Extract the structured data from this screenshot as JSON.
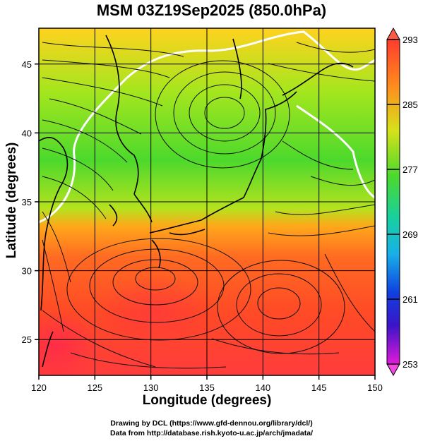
{
  "title": "MSM 03Z19Sep2025 (850.0hPa)",
  "map": {
    "lon_range": [
      120,
      150
    ],
    "lat_range": [
      22.4,
      47.6
    ],
    "x_ticks": [
      {
        "value": 120,
        "label": "120"
      },
      {
        "value": 125,
        "label": "125"
      },
      {
        "value": 130,
        "label": "130"
      },
      {
        "value": 135,
        "label": "135"
      },
      {
        "value": 140,
        "label": "140"
      },
      {
        "value": 145,
        "label": "145"
      },
      {
        "value": 150,
        "label": "150"
      }
    ],
    "y_ticks": [
      {
        "value": 25,
        "label": "25"
      },
      {
        "value": 30,
        "label": "30"
      },
      {
        "value": 35,
        "label": "35"
      },
      {
        "value": 40,
        "label": "40"
      },
      {
        "value": 45,
        "label": "45"
      }
    ],
    "xlabel": "Longitude (degrees)",
    "ylabel": "Latitude  (degrees)",
    "grid": true,
    "field": "temperature (color), streamlines (wind)",
    "contour_value_visible": "285"
  },
  "colorbar": {
    "min": 253,
    "max": 293,
    "labels": [
      "293",
      "285",
      "277",
      "269",
      "261",
      "253"
    ],
    "colors": [
      "#ff3c2c",
      "#ff8a1e",
      "#d6e21a",
      "#2ad12a",
      "#18c9c0",
      "#1060e0",
      "#1010c0",
      "#e01ad8"
    ]
  },
  "credits": {
    "line1": "Drawing by DCL (https://www.gfd-dennou.org/library/dcl/)",
    "line2": "Data from http://database.rish.kyoto-u.ac.jp/arch/jmadata/"
  }
}
